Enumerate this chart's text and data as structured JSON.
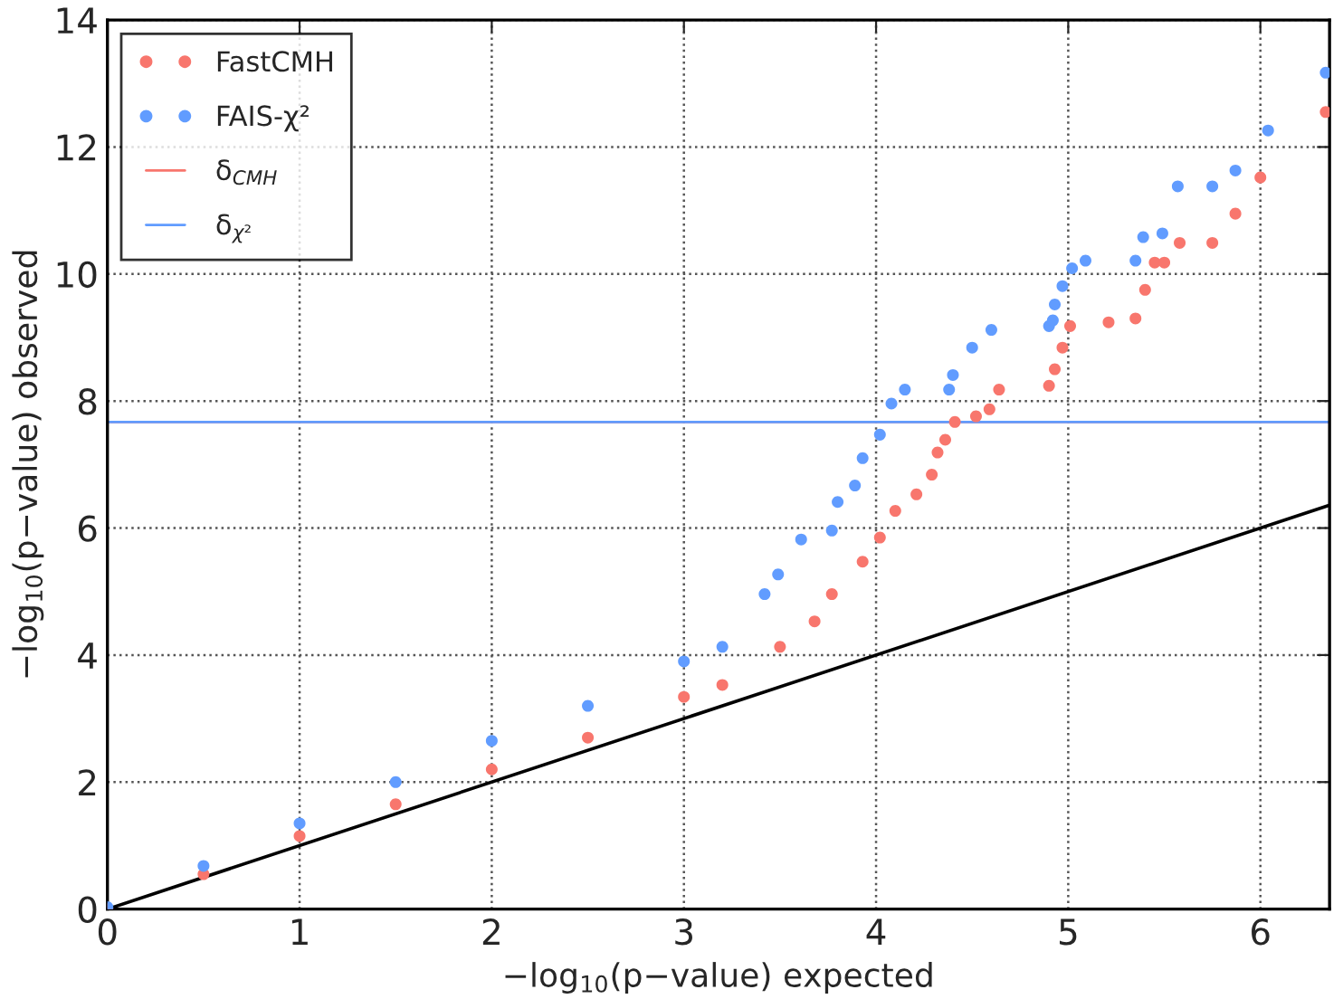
{
  "chart_data": {
    "type": "scatter",
    "xlabel": "−log$_{10}$(p−value) expected",
    "ylabel": "−log$_{10}$(p−value) observed",
    "xlim": [
      0,
      6.36
    ],
    "ylim": [
      0,
      14
    ],
    "xticks": [
      0,
      1,
      2,
      3,
      4,
      5,
      6
    ],
    "yticks": [
      0,
      2,
      4,
      6,
      8,
      10,
      12,
      14
    ],
    "grid": true,
    "legend": "top left",
    "marker": "circle",
    "series": [
      {
        "name": "FastCMH",
        "color": "#f8766d",
        "x": [
          0,
          0.5,
          1,
          1.5,
          2,
          2.5,
          3,
          3.2,
          3.5,
          3.68,
          3.77,
          3.93,
          4.02,
          4.1,
          4.21,
          4.29,
          4.32,
          4.36,
          4.41,
          4.52,
          4.59,
          4.64,
          4.9,
          4.93,
          4.97,
          5.01,
          5.21,
          5.35,
          5.4,
          5.45,
          5.5,
          5.58,
          5.75,
          5.87,
          6.0,
          6.34
        ],
        "values": [
          0,
          0.55,
          1.15,
          1.65,
          2.2,
          2.7,
          3.34,
          3.53,
          4.13,
          4.53,
          4.96,
          5.47,
          5.85,
          6.27,
          6.53,
          6.84,
          7.19,
          7.39,
          7.67,
          7.76,
          7.87,
          8.18,
          8.24,
          8.5,
          8.84,
          9.18,
          9.24,
          9.3,
          9.75,
          10.18,
          10.18,
          10.49,
          10.49,
          10.95,
          11.52,
          12.55
        ]
      },
      {
        "name": "FAIS-χ²",
        "color": "#619cff",
        "x": [
          0,
          0.5,
          1,
          1.5,
          2,
          2.5,
          3,
          3.2,
          3.42,
          3.49,
          3.61,
          3.77,
          3.8,
          3.89,
          3.93,
          4.02,
          4.08,
          4.15,
          4.38,
          4.4,
          4.5,
          4.6,
          4.9,
          4.92,
          4.93,
          4.97,
          5.02,
          5.09,
          5.35,
          5.39,
          5.49,
          5.57,
          5.75,
          5.87,
          6.04,
          6.34
        ],
        "values": [
          0.03,
          0.68,
          1.35,
          2.0,
          2.65,
          3.2,
          3.9,
          4.13,
          4.96,
          5.27,
          5.82,
          5.96,
          6.41,
          6.67,
          7.1,
          7.47,
          7.96,
          8.18,
          8.18,
          8.41,
          8.84,
          9.12,
          9.18,
          9.27,
          9.52,
          9.81,
          10.09,
          10.21,
          10.21,
          10.58,
          10.64,
          11.38,
          11.38,
          11.63,
          12.26,
          13.17
        ]
      },
      {
        "type": "line",
        "marker": "none",
        "color": "#000000",
        "x": [
          0,
          6.36
        ],
        "values": [
          0,
          6.36
        ]
      }
    ],
    "ref_lines": [
      {
        "axis": "y",
        "value": 7.67,
        "label": "δ$_{CMH}$",
        "color": "#f8766d"
      },
      {
        "axis": "y",
        "value": 7.67,
        "label": "δ$_{χ²}$",
        "color": "#619cff"
      }
    ]
  }
}
